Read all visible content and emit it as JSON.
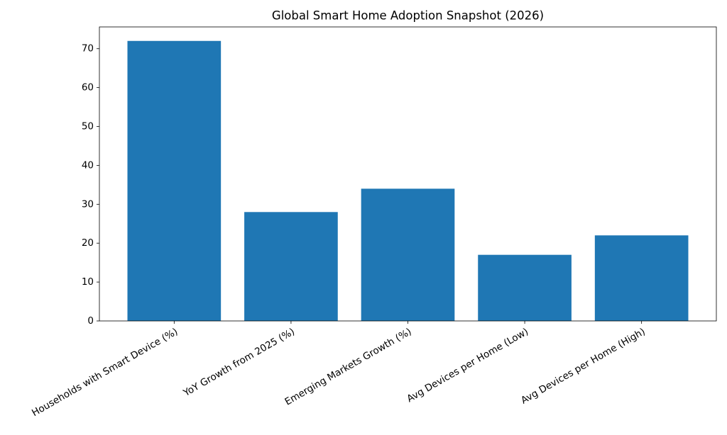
{
  "chart_data": {
    "type": "bar",
    "title": "Global Smart Home Adoption Snapshot (2026)",
    "categories": [
      "Households with Smart Device (%)",
      "YoY Growth from 2025 (%)",
      "Emerging Markets Growth (%)",
      "Avg Devices per Home (Low)",
      "Avg Devices per Home (High)"
    ],
    "values": [
      72,
      28,
      34,
      17,
      22
    ],
    "color": "#1f77b4",
    "ylim": [
      0,
      75.6
    ],
    "yticks": [
      0,
      10,
      20,
      30,
      40,
      50,
      60,
      70
    ],
    "grid": false
  }
}
